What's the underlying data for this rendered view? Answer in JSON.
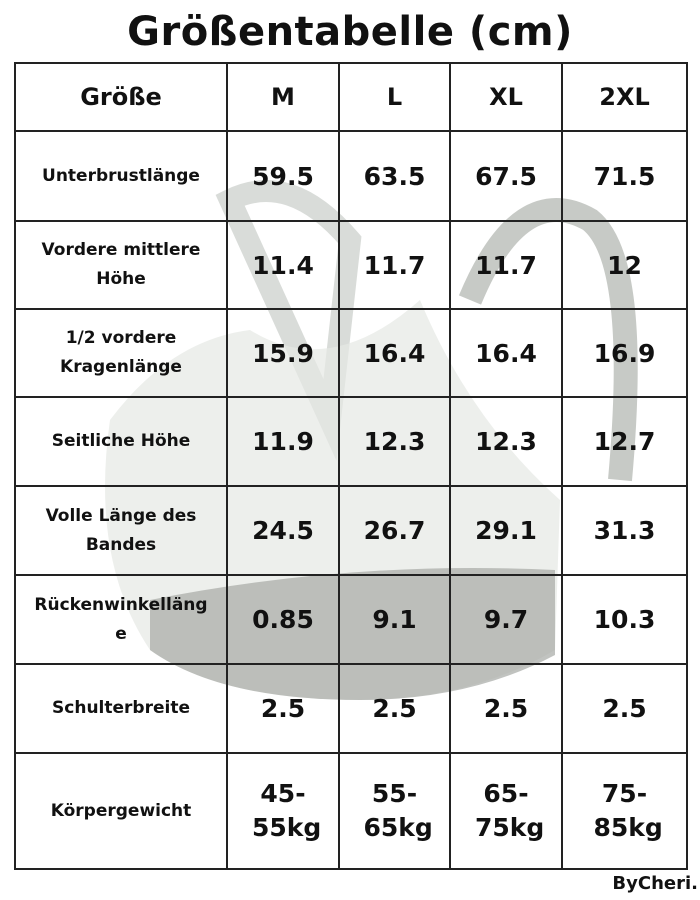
{
  "header": {
    "title": "Größentabelle (cm)"
  },
  "table": {
    "header": [
      "Größe",
      "M",
      "L",
      "XL",
      "2XL"
    ],
    "rows": [
      [
        "Unterbrustlänge",
        "59.5",
        "63.5",
        "67.5",
        "71.5"
      ],
      [
        "Vordere mittlere Höhe",
        "11.4",
        "11.7",
        "11.7",
        "12"
      ],
      [
        "1/2 vordere Kragenlänge",
        "15.9",
        "16.4",
        "16.4",
        "16.9"
      ],
      [
        "Seitliche Höhe",
        "11.9",
        "12.3",
        "12.3",
        "12.7"
      ],
      [
        "Volle Länge des Bandes",
        "24.5",
        "26.7",
        "29.1",
        "31.3"
      ],
      [
        "Rückenwinkellänge",
        "0.85",
        "9.1",
        "9.7",
        "10.3"
      ],
      [
        "Schulterbreite",
        "2.5",
        "2.5",
        "2.5",
        "2.5"
      ],
      [
        "Körpergewicht",
        "45-55kg",
        "55-65kg",
        "65-75kg",
        "75-85kg"
      ]
    ]
  },
  "footer": {
    "brand": "ByCheri."
  }
}
